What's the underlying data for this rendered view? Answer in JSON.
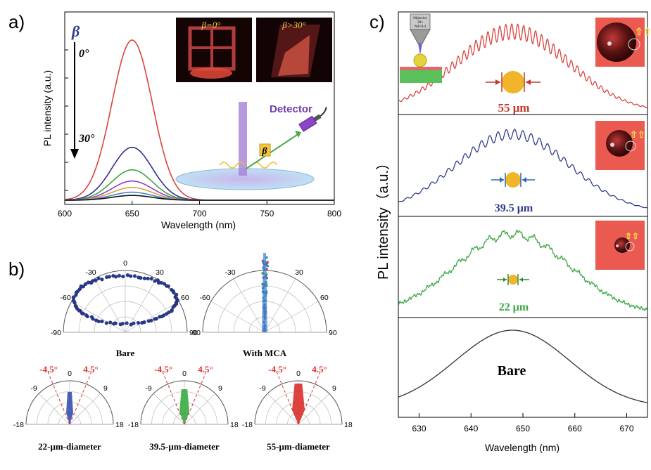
{
  "panel_labels": {
    "a": "a)",
    "b": "b)",
    "c": "c)"
  },
  "panel_a": {
    "beta_symbol": "β",
    "angle_top": "0°",
    "angle_bottom": "30°",
    "inset_left": "β=0°",
    "inset_right": "β>30°",
    "detector_label": "Detector",
    "beta_box": "β"
  },
  "panel_b": {
    "top": [
      {
        "caption": "Bare",
        "ticks": [
          "-90",
          "-60",
          "-30",
          "0",
          "30",
          "60",
          "90"
        ]
      },
      {
        "caption": "With MCA",
        "ticks": [
          "-90",
          "-60",
          "-30",
          "0",
          "30",
          "60",
          "90"
        ]
      }
    ],
    "bottom": [
      {
        "caption": "22-μm-diameter",
        "ticks": [
          "-18",
          "-9",
          "0",
          "9",
          "18"
        ],
        "marks": [
          "-4.5°",
          "4.5°"
        ]
      },
      {
        "caption": "39.5-μm-diameter",
        "ticks": [
          "-18",
          "-9",
          "0",
          "9",
          "18"
        ],
        "marks": [
          "-4.5°",
          "4.5°"
        ]
      },
      {
        "caption": "55-μm-diameter",
        "ticks": [
          "-18",
          "-9",
          "0",
          "9",
          "18"
        ],
        "marks": [
          "-4.5°",
          "4.5°"
        ]
      }
    ]
  },
  "panel_c": {
    "labels": [
      "55 μm",
      "39.5 μm",
      "22 μm",
      "Bare"
    ],
    "objective_text": [
      "Objective",
      "20×",
      "NA=0.4"
    ]
  },
  "chart_data": [
    {
      "type": "line",
      "panel": "a",
      "xlabel": "Wavelength (nm)",
      "ylabel": "PL intensity (a.u.)",
      "xlim": [
        600,
        800
      ],
      "x_ticks": [
        600,
        650,
        700,
        750,
        800
      ],
      "peak_x": 650,
      "series": [
        {
          "color": "#d9433f",
          "peak": 1.0
        },
        {
          "color": "#2e2f8c",
          "peak": 0.33
        },
        {
          "color": "#3aa844",
          "peak": 0.19
        },
        {
          "color": "#8e3cc8",
          "peak": 0.12
        },
        {
          "color": "#e0a03a",
          "peak": 0.08
        },
        {
          "color": "#3f86d2",
          "peak": 0.05
        },
        {
          "color": "#111111",
          "peak": 0.03
        }
      ]
    },
    {
      "type": "scatter",
      "panel": "b",
      "subplot": "Bare",
      "theta_range": [
        -90,
        90
      ],
      "shape": "ring"
    },
    {
      "type": "line",
      "panel": "c",
      "xlabel": "Wavelength (nm)",
      "ylabel": "PL intensity（a.u.）",
      "xlim": [
        626,
        674
      ],
      "x_ticks": [
        630,
        640,
        650,
        660,
        670
      ],
      "series": [
        {
          "name": "55 μm",
          "color": "#d9433f",
          "mode_spacing_nm": 1.15
        },
        {
          "name": "39.5 μm",
          "color": "#2e3a8e",
          "mode_spacing_nm": 1.6
        },
        {
          "name": "22 μm",
          "color": "#3aa844",
          "mode_spacing_nm": 2.9
        },
        {
          "name": "Bare",
          "color": "#333333",
          "mode_spacing_nm": 0
        }
      ]
    }
  ]
}
